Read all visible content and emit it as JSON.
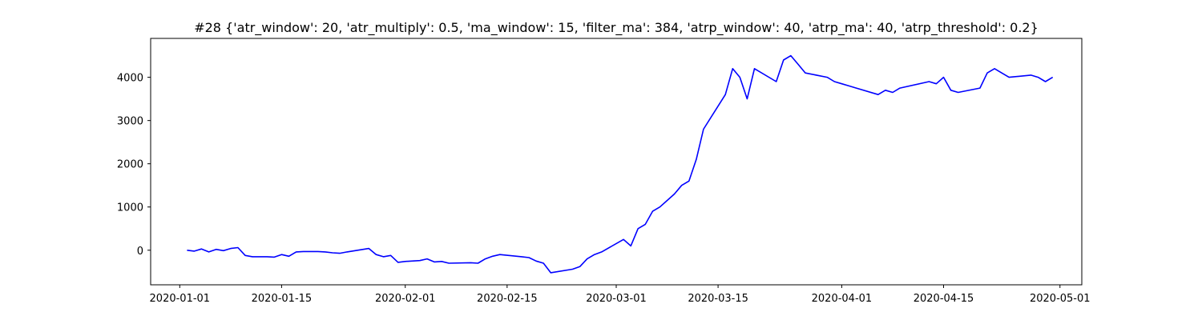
{
  "chart_data": {
    "type": "line",
    "title": "#28 {'atr_window': 20, 'atr_multiply': 0.5, 'ma_window': 15, 'filter_ma': 384, 'atrp_window': 40, 'atrp_ma': 40, 'atrp_threshold': 0.2}",
    "xlabel": "",
    "ylabel": "",
    "x_is_date": true,
    "xlim": [
      "2019-12-28",
      "2020-05-04"
    ],
    "ylim": [
      -800,
      4900
    ],
    "x_ticks": [
      "2020-01-01",
      "2020-01-15",
      "2020-02-01",
      "2020-02-15",
      "2020-03-01",
      "2020-03-15",
      "2020-04-01",
      "2020-04-15",
      "2020-05-01"
    ],
    "y_ticks": [
      0,
      1000,
      2000,
      3000,
      4000
    ],
    "grid": false,
    "legend": "none",
    "series": [
      {
        "color": "#0000ff",
        "x": [
          "2020-01-02",
          "2020-01-03",
          "2020-01-04",
          "2020-01-05",
          "2020-01-06",
          "2020-01-07",
          "2020-01-08",
          "2020-01-09",
          "2020-01-10",
          "2020-01-11",
          "2020-01-13",
          "2020-01-14",
          "2020-01-15",
          "2020-01-16",
          "2020-01-17",
          "2020-01-18",
          "2020-01-20",
          "2020-01-21",
          "2020-01-22",
          "2020-01-23",
          "2020-01-24",
          "2020-01-27",
          "2020-01-28",
          "2020-01-29",
          "2020-01-30",
          "2020-01-31",
          "2020-02-01",
          "2020-02-03",
          "2020-02-04",
          "2020-02-05",
          "2020-02-06",
          "2020-02-07",
          "2020-02-10",
          "2020-02-11",
          "2020-02-12",
          "2020-02-13",
          "2020-02-14",
          "2020-02-17",
          "2020-02-18",
          "2020-02-19",
          "2020-02-20",
          "2020-02-21",
          "2020-02-24",
          "2020-02-25",
          "2020-02-26",
          "2020-02-27",
          "2020-02-28",
          "2020-03-02",
          "2020-03-03",
          "2020-03-04",
          "2020-03-05",
          "2020-03-06",
          "2020-03-07",
          "2020-03-09",
          "2020-03-10",
          "2020-03-11",
          "2020-03-12",
          "2020-03-13",
          "2020-03-16",
          "2020-03-17",
          "2020-03-18",
          "2020-03-19",
          "2020-03-20",
          "2020-03-23",
          "2020-03-24",
          "2020-03-25",
          "2020-03-26",
          "2020-03-27",
          "2020-03-30",
          "2020-03-31",
          "2020-04-01",
          "2020-04-02",
          "2020-04-03",
          "2020-04-06",
          "2020-04-07",
          "2020-04-08",
          "2020-04-09",
          "2020-04-13",
          "2020-04-14",
          "2020-04-15",
          "2020-04-16",
          "2020-04-17",
          "2020-04-20",
          "2020-04-21",
          "2020-04-22",
          "2020-04-23",
          "2020-04-24",
          "2020-04-27",
          "2020-04-28",
          "2020-04-29",
          "2020-04-30"
        ],
        "y": [
          0,
          -20,
          30,
          -40,
          20,
          -10,
          40,
          60,
          -120,
          -150,
          -150,
          -160,
          -100,
          -140,
          -40,
          -30,
          -30,
          -40,
          -60,
          -70,
          -40,
          40,
          -100,
          -150,
          -120,
          -280,
          -260,
          -240,
          -200,
          -270,
          -260,
          -300,
          -290,
          -300,
          -200,
          -140,
          -100,
          -150,
          -170,
          -250,
          -300,
          -520,
          -440,
          -380,
          -200,
          -100,
          -40,
          250,
          100,
          500,
          600,
          900,
          1000,
          1300,
          1500,
          1600,
          2100,
          2800,
          3600,
          4200,
          4000,
          3500,
          4200,
          3900,
          4400,
          4500,
          4300,
          4100,
          4000,
          3900,
          3850,
          3800,
          3750,
          3600,
          3700,
          3650,
          3750,
          3900,
          3850,
          4000,
          3700,
          3650,
          3750,
          4100,
          4200,
          4100,
          4000,
          4050,
          4000,
          3900,
          4000
        ]
      }
    ]
  }
}
